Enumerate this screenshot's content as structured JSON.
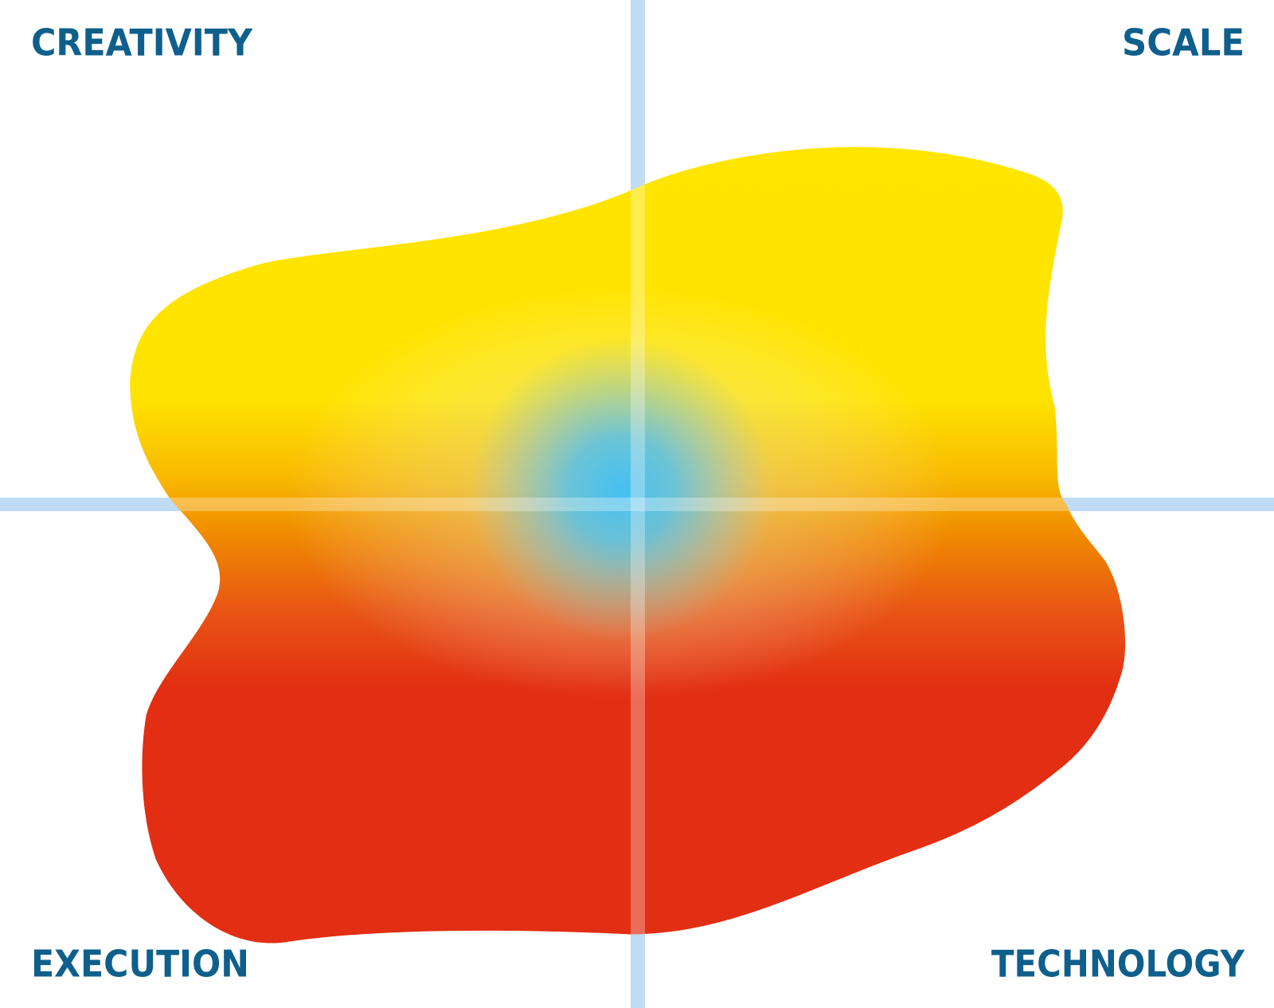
{
  "labels": {
    "top_left": "CREATIVITY",
    "top_right": "SCALE",
    "bottom_left": "EXECUTION",
    "bottom_right": "TECHNOLOGY"
  }
}
